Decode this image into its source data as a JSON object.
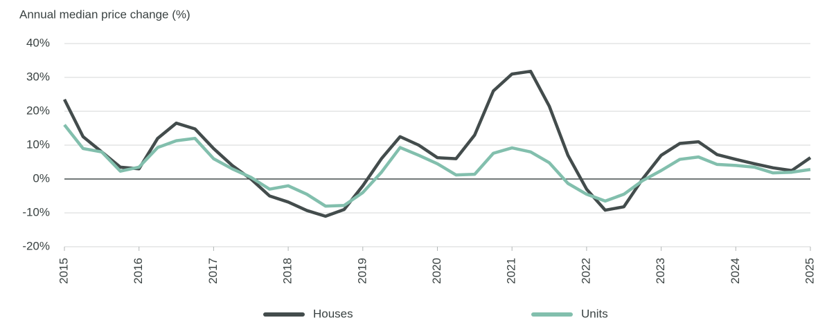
{
  "chart_data": {
    "type": "line",
    "title": "Annual median price change (%)",
    "x": [
      2015,
      2015.25,
      2015.5,
      2015.75,
      2016,
      2016.25,
      2016.5,
      2016.75,
      2017,
      2017.25,
      2017.5,
      2017.75,
      2018,
      2018.25,
      2018.5,
      2018.75,
      2019,
      2019.25,
      2019.5,
      2019.75,
      2020,
      2020.25,
      2020.5,
      2020.75,
      2021,
      2021.25,
      2021.5,
      2021.75,
      2022,
      2022.25,
      2022.5,
      2022.75,
      2023,
      2023.25,
      2023.5,
      2023.75,
      2024,
      2024.25,
      2024.5,
      2024.75,
      2025
    ],
    "series": [
      {
        "name": "Houses",
        "color": "#434c4c",
        "values": [
          23.5,
          12.5,
          8,
          3.5,
          3,
          12,
          16.5,
          14.8,
          9,
          4,
          0,
          -5,
          -6.8,
          -9.3,
          -11,
          -9,
          -2,
          6,
          12.5,
          10,
          6.3,
          6,
          13,
          26,
          31,
          31.8,
          21.5,
          7,
          -3,
          -9.2,
          -8.2,
          0,
          7,
          10.5,
          11,
          7.2,
          5.8,
          4.5,
          3.3,
          2.5,
          6.3
        ]
      },
      {
        "name": "Units",
        "color": "#82bfad",
        "values": [
          16,
          9,
          8,
          2.3,
          3.5,
          9.3,
          11.3,
          12,
          6,
          3,
          0.5,
          -3,
          -2,
          -4.5,
          -8,
          -7.8,
          -4,
          2,
          9.3,
          7,
          4.5,
          1.2,
          1.4,
          7.6,
          9.2,
          8,
          4.8,
          -1.3,
          -4.5,
          -6.5,
          -4.5,
          -0.5,
          2.5,
          5.8,
          6.5,
          4.3,
          4,
          3.5,
          1.8,
          2,
          2.8
        ]
      }
    ],
    "xlim": [
      2015,
      2025
    ],
    "xticks": [
      2015,
      2016,
      2017,
      2018,
      2019,
      2020,
      2021,
      2022,
      2023,
      2024,
      2025
    ],
    "ylim": [
      -20,
      40
    ],
    "yticks": [
      {
        "value": -20,
        "label": "-20%"
      },
      {
        "value": -10,
        "label": "-10%"
      },
      {
        "value": 0,
        "label": "0%"
      },
      {
        "value": 10,
        "label": "10%"
      },
      {
        "value": 20,
        "label": "20%"
      },
      {
        "value": 30,
        "label": "30%"
      },
      {
        "value": 40,
        "label": "40%"
      }
    ],
    "grid": true,
    "legend": "bottom"
  }
}
